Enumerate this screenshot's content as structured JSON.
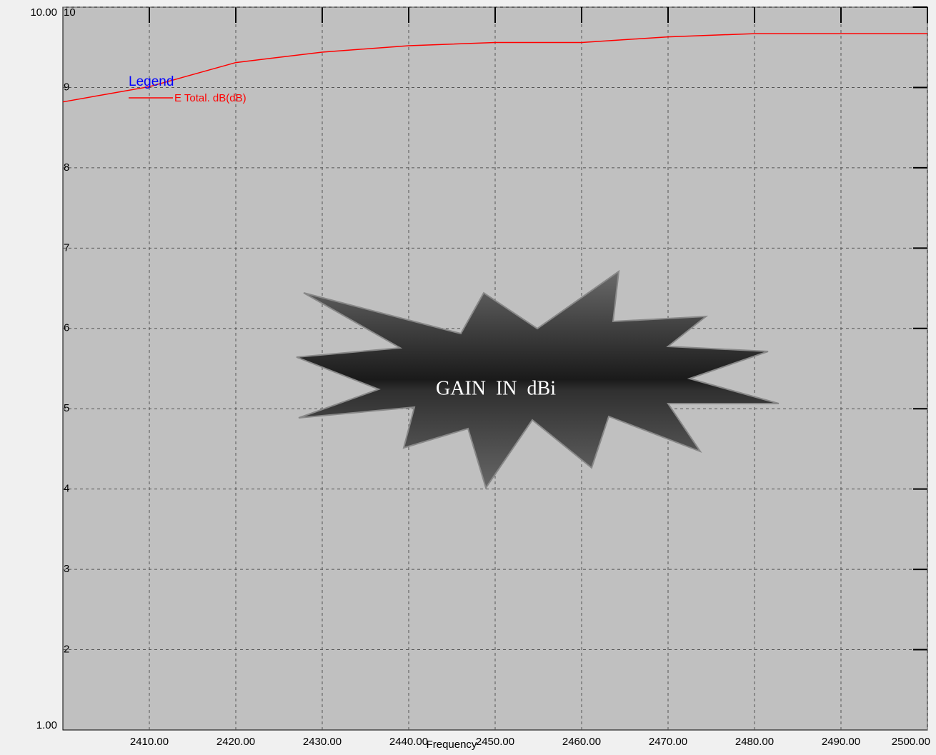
{
  "chart_data": {
    "type": "line",
    "x_label": "Frequency",
    "legend_title": "Legend",
    "annotation": "GAIN  IN  dBi",
    "x": [
      2400,
      2410,
      2420,
      2430,
      2440,
      2450,
      2460,
      2470,
      2480,
      2490,
      2500
    ],
    "series": [
      {
        "name": "E Total. dB(dB)",
        "color": "#ff0000",
        "values": [
          8.82,
          9.01,
          9.31,
          9.44,
          9.52,
          9.56,
          9.56,
          9.63,
          9.67,
          9.67,
          9.67
        ]
      }
    ],
    "xlim": [
      2400,
      2500
    ],
    "xticks": [
      {
        "value": 2410,
        "label": "2410.00"
      },
      {
        "value": 2420,
        "label": "2420.00"
      },
      {
        "value": 2430,
        "label": "2430.00"
      },
      {
        "value": 2440,
        "label": "2440.00"
      },
      {
        "value": 2450,
        "label": "2450.00"
      },
      {
        "value": 2460,
        "label": "2460.00"
      },
      {
        "value": 2470,
        "label": "2470.00"
      },
      {
        "value": 2480,
        "label": "2480.00"
      },
      {
        "value": 2490,
        "label": "2490.00"
      },
      {
        "value": 2500,
        "label": "2500.00"
      }
    ],
    "ylim": [
      1,
      10
    ],
    "yticks": [
      2,
      3,
      4,
      5,
      6,
      7,
      8,
      9,
      10
    ],
    "yticks_outer": [
      {
        "value": 1,
        "label": "1.00"
      },
      {
        "value": 10,
        "label": "10.00"
      }
    ],
    "grid": true
  }
}
